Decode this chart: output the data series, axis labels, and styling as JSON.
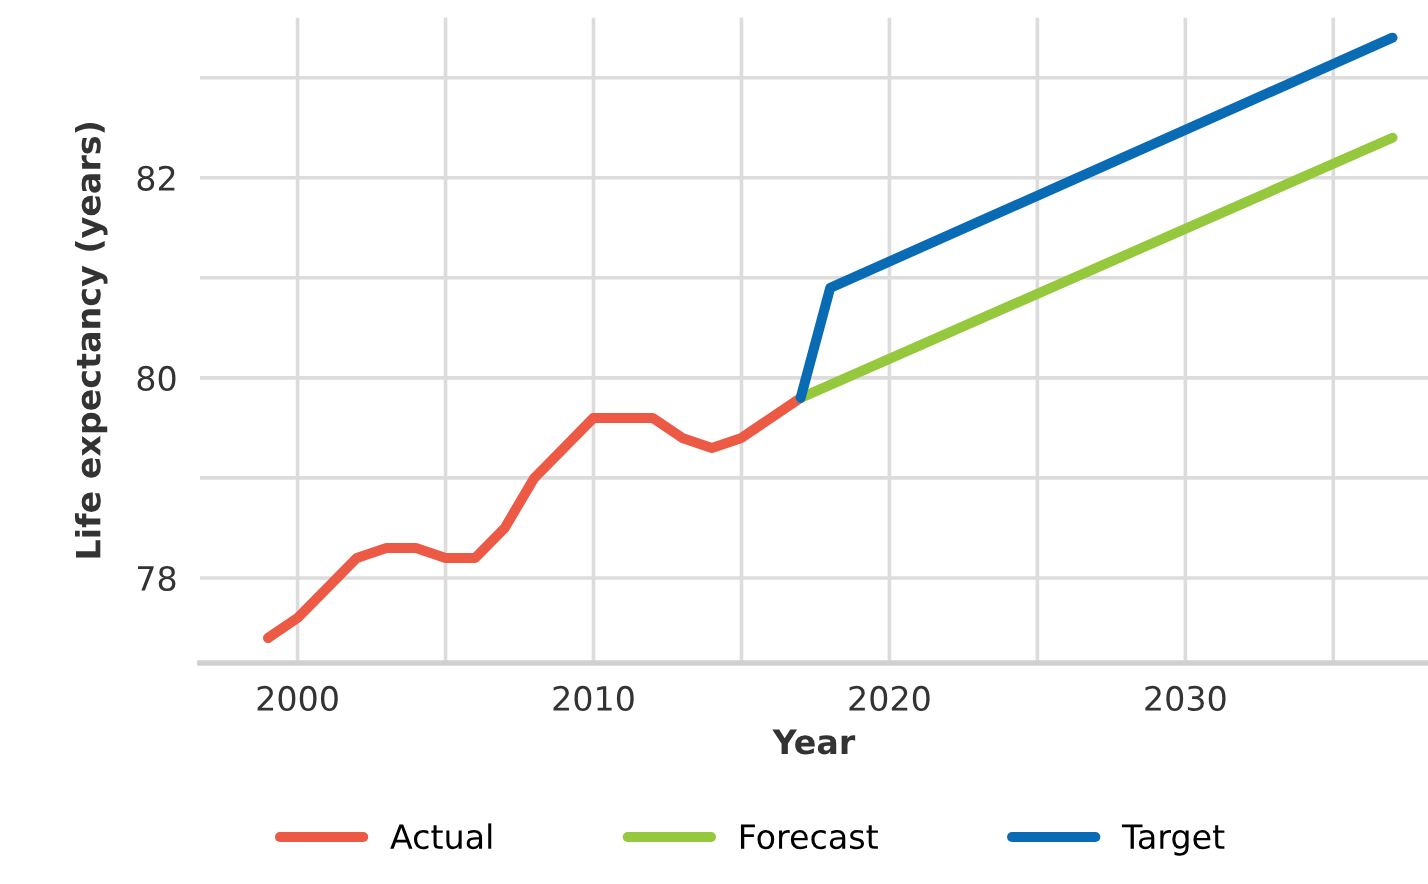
{
  "chart_data": {
    "type": "line",
    "xlabel": "Year",
    "ylabel": "Life expectancy (years)",
    "xlim": [
      1996.7,
      2038.2
    ],
    "ylim": [
      77.15,
      83.6
    ],
    "xticks": [
      2000,
      {
        "value": 2005,
        "label": null
      },
      2010,
      {
        "value": 2015,
        "label": null
      },
      2020,
      {
        "value": 2025,
        "label": null
      },
      2030,
      {
        "value": 2035,
        "label": null
      }
    ],
    "yticks": [
      78,
      {
        "value": 79,
        "label": null
      },
      80,
      {
        "value": 81,
        "label": null
      },
      82,
      {
        "value": 83,
        "label": null
      }
    ],
    "grid": true,
    "legend": "bottom",
    "line_style": "solid",
    "marker": "none",
    "series": [
      {
        "name": "Actual",
        "color": "#ec5a45",
        "x": [
          1999,
          2000,
          2001,
          2002,
          2003,
          2004,
          2005,
          2006,
          2007,
          2008,
          2009,
          2010,
          2011,
          2012,
          2013,
          2014,
          2015,
          2016,
          2017
        ],
        "values": [
          77.4,
          77.6,
          77.9,
          78.2,
          78.3,
          78.3,
          78.2,
          78.2,
          78.5,
          79.0,
          79.3,
          79.6,
          79.6,
          79.6,
          79.4,
          79.3,
          79.4,
          79.6,
          79.8
        ]
      },
      {
        "name": "Forecast",
        "color": "#95c83d",
        "x": [
          2017,
          2037
        ],
        "values": [
          79.8,
          82.4
        ]
      },
      {
        "name": "Target",
        "color": "#0a6bb5",
        "x": [
          2017,
          2018,
          2037
        ],
        "values": [
          79.8,
          80.9,
          83.4
        ]
      }
    ]
  }
}
